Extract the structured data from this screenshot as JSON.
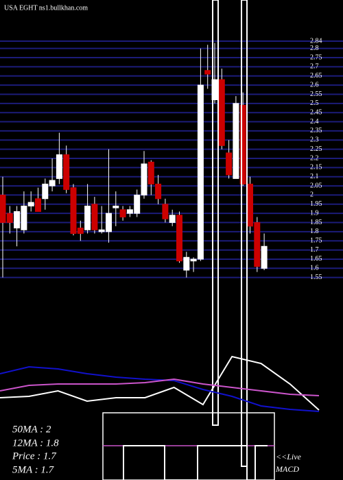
{
  "chart_data": [
    {
      "type": "candlestick",
      "title": "USA EGHT ns1.bullkhan.com",
      "ylim": [
        1.53,
        2.84
      ],
      "yticks": [
        1.55,
        1.6,
        1.65,
        1.7,
        1.75,
        1.8,
        1.85,
        1.9,
        1.95,
        2,
        2.05,
        2.1,
        2.15,
        2.2,
        2.25,
        2.3,
        2.35,
        2.4,
        2.45,
        2.5,
        2.55,
        2.6,
        2.65,
        2.7,
        2.75,
        2.8,
        2.84
      ],
      "grid": true,
      "up_color": "#ffffff",
      "down_color": "#cc0000",
      "grid_color": "#1c1c7a",
      "open": [
        2.0,
        1.9,
        1.82,
        1.81,
        1.94,
        1.98,
        1.98,
        2.05,
        2.09,
        2.22,
        2.04,
        1.82,
        1.81,
        1.95,
        1.8,
        1.8,
        1.93,
        1.92,
        1.9,
        1.9,
        2.0,
        2.18,
        2.06,
        1.95,
        1.85,
        1.89,
        1.59,
        1.64,
        1.65,
        2.68,
        2.52,
        2.63,
        2.23,
        2.09,
        2.49,
        2.06,
        1.85,
        1.6
      ],
      "high": [
        2.1,
        1.94,
        1.94,
        2.02,
        2.02,
        2.04,
        2.09,
        2.2,
        2.34,
        2.27,
        2.06,
        1.86,
        2.06,
        1.99,
        1.94,
        2.25,
        2.02,
        1.94,
        1.94,
        2.03,
        2.24,
        2.19,
        2.11,
        1.98,
        1.92,
        1.91,
        1.69,
        1.66,
        2.8,
        2.82,
        2.83,
        2.69,
        2.3,
        2.54,
        2.56,
        2.1,
        1.88,
        1.79
      ],
      "low": [
        1.55,
        1.79,
        1.72,
        1.79,
        1.91,
        1.91,
        1.92,
        2.02,
        2.06,
        2.01,
        1.78,
        1.75,
        1.79,
        1.79,
        1.79,
        1.74,
        1.83,
        1.86,
        1.88,
        1.88,
        1.98,
        2.0,
        1.95,
        1.85,
        1.83,
        1.63,
        1.55,
        1.58,
        1.64,
        2.58,
        2.5,
        2.25,
        2.09,
        2.09,
        2.05,
        1.79,
        1.58,
        1.59
      ],
      "close": [
        1.85,
        1.85,
        1.91,
        1.94,
        1.96,
        1.91,
        2.06,
        2.08,
        2.22,
        2.03,
        1.79,
        1.79,
        1.94,
        1.81,
        1.81,
        1.9,
        1.94,
        1.88,
        1.92,
        2.0,
        2.17,
        2.06,
        1.98,
        1.87,
        1.89,
        1.64,
        1.66,
        1.65,
        2.6,
        2.66,
        2.63,
        2.27,
        2.11,
        2.5,
        2.06,
        1.83,
        1.61,
        1.72
      ]
    },
    {
      "type": "line",
      "ylim": [
        0,
        120
      ],
      "x": [
        0,
        1,
        2,
        3,
        4,
        5,
        6,
        7,
        8,
        9,
        10,
        11
      ],
      "xlim": [
        0,
        11
      ],
      "series": [
        {
          "color": "#ffffff",
          "values": [
            40,
            42,
            50,
            35,
            40,
            40,
            55,
            30,
            100,
            90,
            60,
            22
          ]
        },
        {
          "color": "#1111cc",
          "values": [
            75,
            85,
            82,
            75,
            70,
            67,
            65,
            52,
            42,
            28,
            23,
            20
          ]
        },
        {
          "color": "#cc55cc",
          "values": [
            50,
            58,
            60,
            60,
            60,
            62,
            67,
            60,
            55,
            50,
            45,
            43
          ]
        }
      ],
      "labels": [
        "50MA : 2",
        "12MA : 1.8",
        "Price   : 1.7",
        "5MA : 1.7",
        "<<Live",
        "MACD"
      ]
    }
  ]
}
